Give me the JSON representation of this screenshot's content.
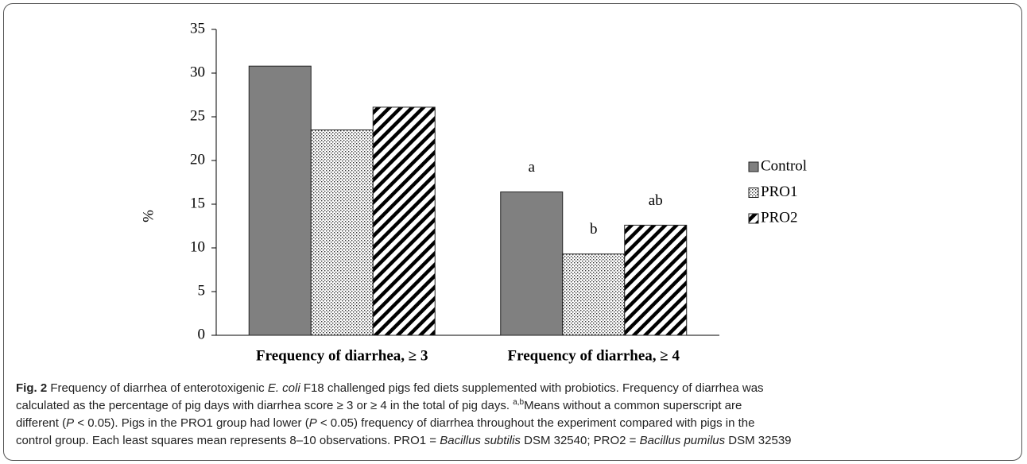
{
  "chart_data": {
    "type": "bar",
    "ylabel": "%",
    "categories": [
      "Frequency of diarrhea, ≥ 3",
      "Frequency of diarrhea, ≥ 4"
    ],
    "series": [
      {
        "name": "Control",
        "color": "#808080",
        "pattern": "solid",
        "values": [
          30.8,
          16.4
        ],
        "letters": [
          null,
          "a"
        ]
      },
      {
        "name": "PRO1",
        "color": "#ffffff",
        "pattern": "dots",
        "values": [
          23.5,
          9.3
        ],
        "letters": [
          null,
          "b"
        ]
      },
      {
        "name": "PRO2",
        "color": "#ffffff",
        "pattern": "diagonal",
        "values": [
          26.1,
          12.6
        ],
        "letters": [
          null,
          "ab"
        ]
      }
    ],
    "ylim": [
      0,
      35
    ],
    "yticks": [
      0,
      5,
      10,
      15,
      20,
      25,
      30,
      35
    ],
    "legend": "right"
  },
  "caption": [
    [
      {
        "text": "Fig. 2",
        "bold": true
      },
      {
        "text": " Frequency of diarrhea of enterotoxigenic "
      },
      {
        "text": "E. coli",
        "italic": true
      },
      {
        "text": " F18 challenged pigs fed diets supplemented with probiotics. Frequency of diarrhea was"
      }
    ],
    [
      {
        "text": "calculated as the percentage of pig days with diarrhea score ≥ 3 or ≥ 4 in the total of pig days. "
      },
      {
        "text": "a,b",
        "sup": true
      },
      {
        "text": "Means without a common superscript are"
      }
    ],
    [
      {
        "text": "different ("
      },
      {
        "text": "P",
        "italic": true
      },
      {
        "text": " < 0.05). Pigs in the PRO1 group had lower ("
      },
      {
        "text": "P",
        "italic": true
      },
      {
        "text": " < 0.05) frequency of diarrhea throughout the experiment compared with pigs in the"
      }
    ],
    [
      {
        "text": "control group. Each least squares mean represents 8–10 observations. PRO1 = "
      },
      {
        "text": "Bacillus subtilis",
        "italic": true
      },
      {
        "text": " DSM 32540; PRO2 = "
      },
      {
        "text": "Bacillus pumilus",
        "italic": true
      },
      {
        "text": " DSM 32539"
      }
    ]
  ]
}
